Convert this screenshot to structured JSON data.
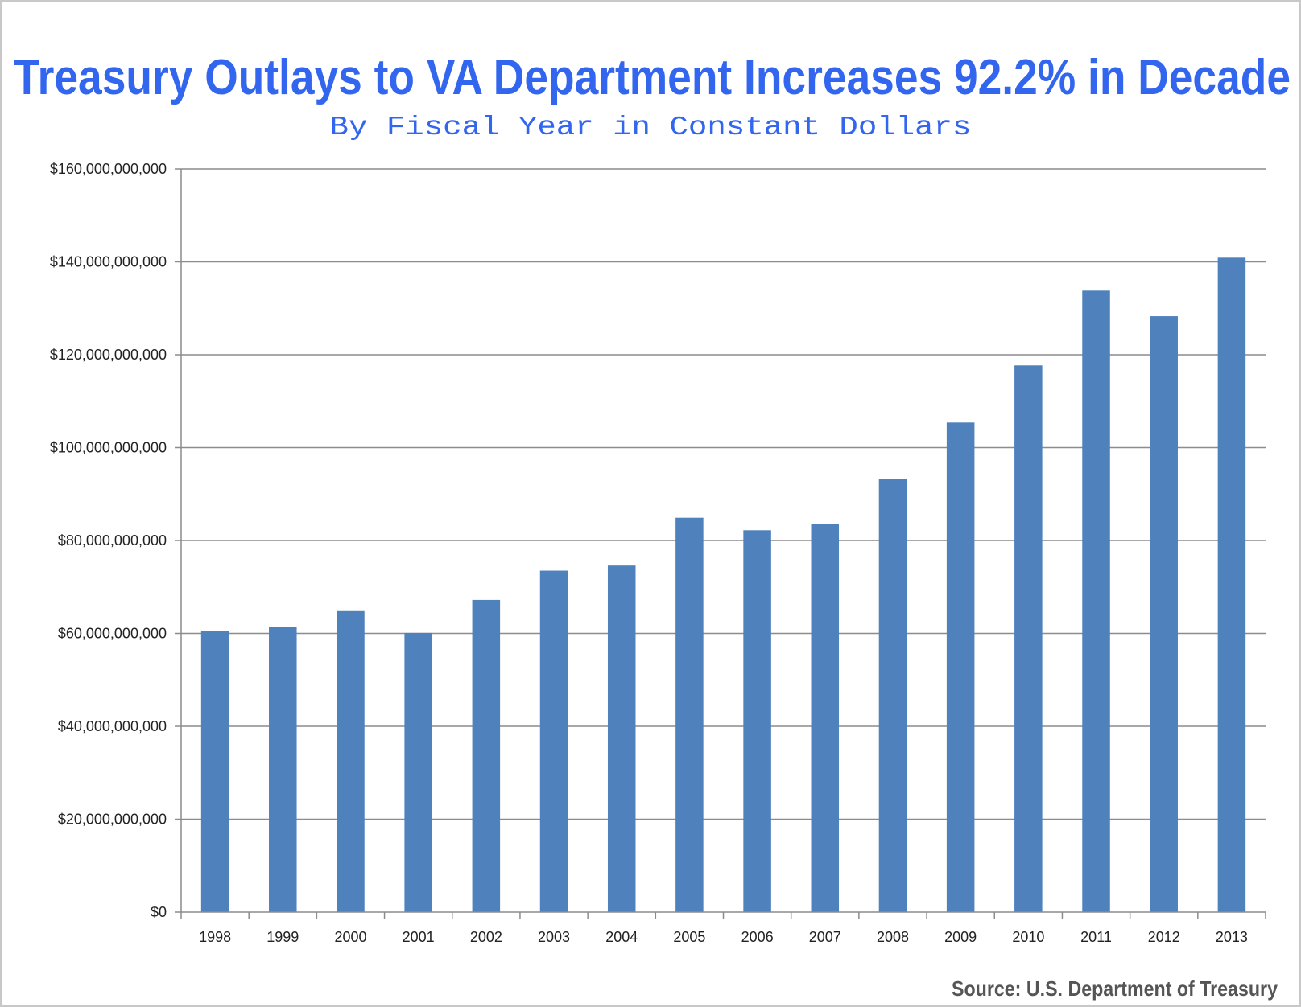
{
  "chart_data": {
    "type": "bar",
    "title": "Treasury Outlays to VA Department Increases 92.2% in Decade",
    "subtitle": "By Fiscal Year in Constant Dollars",
    "source": "Source: U.S. Department of Treasury",
    "xlabel": "",
    "ylabel": "",
    "categories": [
      "1998",
      "1999",
      "2000",
      "2001",
      "2002",
      "2003",
      "2004",
      "2005",
      "2006",
      "2007",
      "2008",
      "2009",
      "2010",
      "2011",
      "2012",
      "2013"
    ],
    "values": [
      60600000000,
      61400000000,
      64800000000,
      60100000000,
      67200000000,
      73500000000,
      74600000000,
      84900000000,
      82200000000,
      83500000000,
      93300000000,
      105400000000,
      117700000000,
      133800000000,
      128300000000,
      140900000000
    ],
    "ylim": [
      0,
      160000000000
    ],
    "yticks": [
      0,
      20000000000,
      40000000000,
      60000000000,
      80000000000,
      100000000000,
      120000000000,
      140000000000,
      160000000000
    ],
    "ytick_labels": [
      "$0",
      "$20,000,000,000",
      "$40,000,000,000",
      "$60,000,000,000",
      "$80,000,000,000",
      "$100,000,000,000",
      "$120,000,000,000",
      "$140,000,000,000",
      "$160,000,000,000"
    ],
    "grid": true,
    "legend": "none",
    "colors": {
      "bar": "#4F81BD",
      "title": "#3366EE",
      "subtitle": "#3366EE",
      "grid": "#8c8c8c"
    }
  }
}
